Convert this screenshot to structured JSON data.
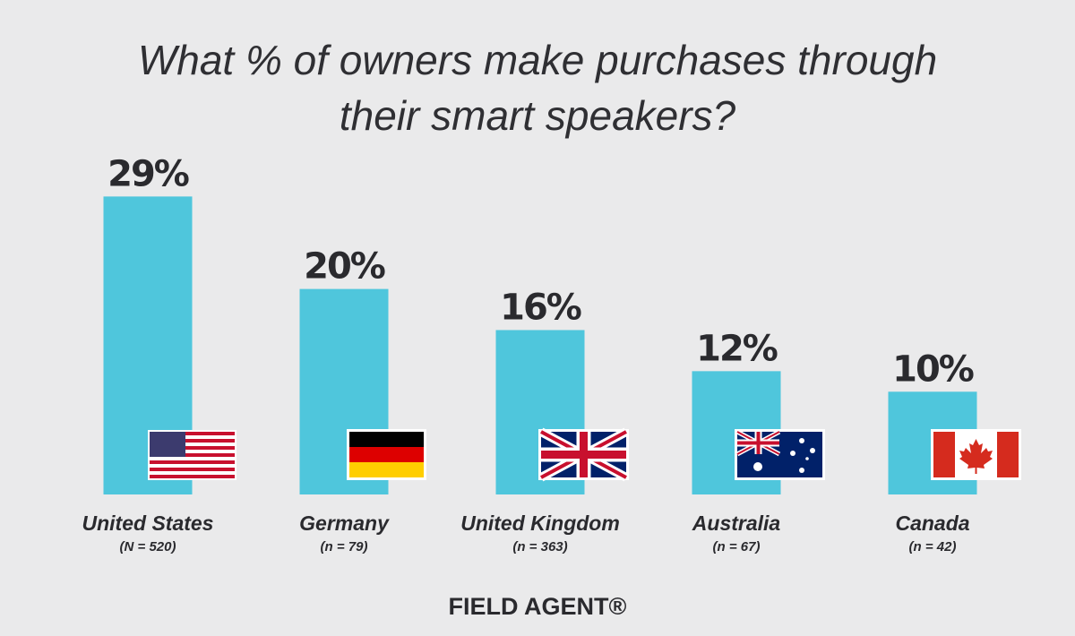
{
  "chart_data": {
    "type": "bar",
    "title": "What % of owners make purchases through their smart speakers?",
    "categories": [
      "United States",
      "Germany",
      "United Kingdom",
      "Australia",
      "Canada"
    ],
    "category_notes": [
      "(N = 520)",
      "(n = 79)",
      "(n = 363)",
      "(n = 67)",
      "(n = 42)"
    ],
    "values": [
      29,
      20,
      16,
      12,
      10
    ],
    "value_labels": [
      "29%",
      "20%",
      "16%",
      "12%",
      "10%"
    ],
    "color": "#4fc6dc",
    "logo": "FIELD AGENT®"
  }
}
